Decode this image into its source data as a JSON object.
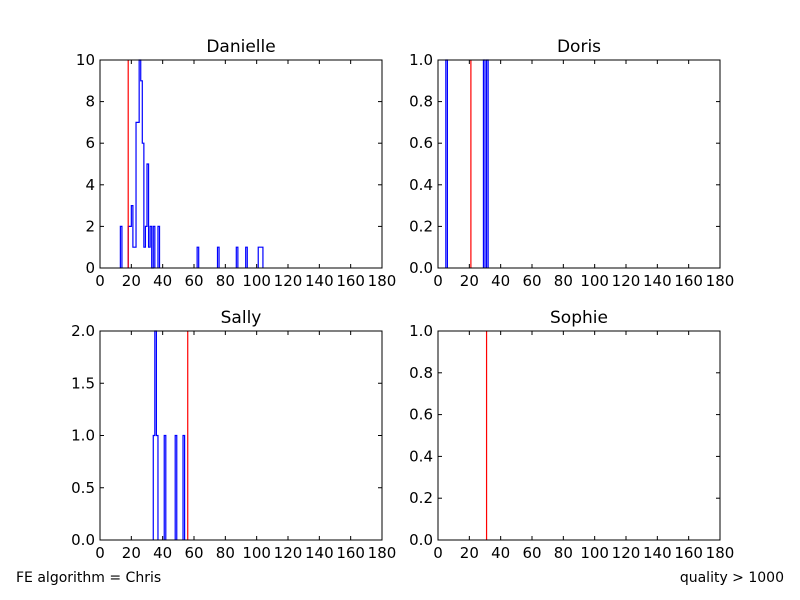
{
  "footnotes": {
    "left": "FE algorithm = Chris",
    "right": "quality > 1000"
  },
  "colors": {
    "histogram": "#0000ff",
    "marker": "#ff0000",
    "axes": "#000000"
  },
  "chart_data": [
    {
      "type": "histogram",
      "title": "Danielle",
      "xlim": [
        0,
        180
      ],
      "ylim": [
        0,
        10
      ],
      "xticks": [
        "0",
        "20",
        "40",
        "60",
        "80",
        "100",
        "120",
        "140",
        "160",
        "180"
      ],
      "yticks": [
        "0",
        "2",
        "4",
        "6",
        "8",
        "10"
      ],
      "bin_width": 1,
      "bins": [
        [
          13,
          2
        ],
        [
          18,
          2
        ],
        [
          19,
          2
        ],
        [
          20,
          3
        ],
        [
          21,
          1
        ],
        [
          22,
          1
        ],
        [
          23,
          7
        ],
        [
          24,
          7
        ],
        [
          25,
          10
        ],
        [
          26,
          9
        ],
        [
          27,
          6
        ],
        [
          28,
          1
        ],
        [
          29,
          2
        ],
        [
          30,
          5
        ],
        [
          31,
          1
        ],
        [
          32,
          2
        ],
        [
          33,
          0
        ],
        [
          34,
          2
        ],
        [
          37,
          2
        ],
        [
          62,
          1
        ],
        [
          75,
          1
        ],
        [
          87,
          1
        ],
        [
          93,
          1
        ],
        [
          101,
          1
        ],
        [
          102,
          1
        ],
        [
          103,
          1
        ]
      ],
      "marker_x": 18
    },
    {
      "type": "histogram",
      "title": "Doris",
      "xlim": [
        0,
        180
      ],
      "ylim": [
        0,
        1
      ],
      "xticks": [
        "0",
        "20",
        "40",
        "60",
        "80",
        "100",
        "120",
        "140",
        "160",
        "180"
      ],
      "yticks": [
        "0.0",
        "0.2",
        "0.4",
        "0.6",
        "0.8",
        "1.0"
      ],
      "bin_width": 1,
      "bins": [
        [
          5,
          1
        ],
        [
          29,
          1
        ],
        [
          31,
          1
        ]
      ],
      "marker_x": 21
    },
    {
      "type": "histogram",
      "title": "Sally",
      "xlim": [
        0,
        180
      ],
      "ylim": [
        0,
        2
      ],
      "xticks": [
        "0",
        "20",
        "40",
        "60",
        "80",
        "100",
        "120",
        "140",
        "160",
        "180"
      ],
      "yticks": [
        "0.0",
        "0.5",
        "1.0",
        "1.5",
        "2.0"
      ],
      "bin_width": 1,
      "bins": [
        [
          34,
          1
        ],
        [
          35,
          2
        ],
        [
          36,
          1
        ],
        [
          41,
          1
        ],
        [
          48,
          1
        ],
        [
          53,
          1
        ]
      ],
      "marker_x": 56
    },
    {
      "type": "histogram",
      "title": "Sophie",
      "xlim": [
        0,
        180
      ],
      "ylim": [
        0,
        1
      ],
      "xticks": [
        "0",
        "20",
        "40",
        "60",
        "80",
        "100",
        "120",
        "140",
        "160",
        "180"
      ],
      "yticks": [
        "0.0",
        "0.2",
        "0.4",
        "0.6",
        "0.8",
        "1.0"
      ],
      "bin_width": 1,
      "bins": [],
      "marker_x": 31
    }
  ]
}
